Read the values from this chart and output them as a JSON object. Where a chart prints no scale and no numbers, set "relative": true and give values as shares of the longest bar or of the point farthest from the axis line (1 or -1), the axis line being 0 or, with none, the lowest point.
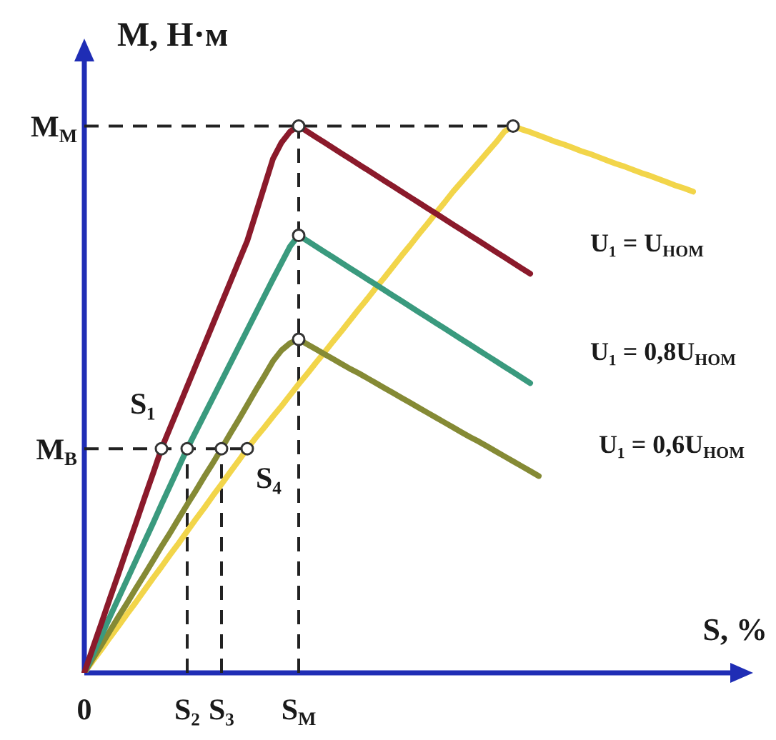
{
  "chart_data": {
    "type": "line",
    "relative": true,
    "xlabel": "S, %",
    "ylabel": "M, Н·м",
    "tick_labels": "x",
    "marker": "none",
    "line_style": "solid",
    "categories": [
      "0",
      null,
      null,
      null,
      null,
      null,
      null,
      null,
      null,
      null,
      null,
      null,
      "S₂",
      null,
      null,
      null,
      "S₃",
      null,
      null,
      null,
      null,
      null,
      null,
      null,
      null,
      "S$_{М}$",
      null,
      null,
      null,
      null,
      null,
      null,
      null,
      null,
      null,
      null,
      null,
      null,
      null,
      null,
      null,
      null,
      null,
      null,
      null,
      null,
      null,
      null,
      null,
      null,
      null,
      null,
      null,
      null,
      null,
      null,
      null,
      null,
      null,
      null,
      null,
      null,
      null,
      null,
      null,
      null,
      null,
      null,
      null,
      null,
      null,
      null
    ],
    "series": [
      {
        "name": "U₁ = U$_{НОМ}$",
        "color": "#8b1a2b",
        "values": [
          0,
          0.046,
          0.091,
          0.137,
          0.182,
          0.228,
          0.273,
          0.319,
          0.364,
          0.41,
          0.448,
          0.486,
          0.524,
          0.562,
          0.6,
          0.638,
          0.676,
          0.714,
          0.752,
          0.79,
          0.84,
          0.89,
          0.94,
          0.97,
          0.99,
          1,
          0.99,
          0.98,
          0.97,
          0.96,
          0.95,
          0.94,
          0.93,
          0.92,
          0.91,
          0.9,
          0.89,
          0.88,
          0.87,
          0.86,
          0.85,
          0.84,
          0.83,
          0.82,
          0.81,
          0.8,
          0.79,
          0.78,
          0.77,
          0.76,
          0.75,
          0.74,
          0.73,
          null,
          null,
          null,
          null,
          null,
          null,
          null,
          null,
          null,
          null,
          null,
          null,
          null,
          null,
          null,
          null,
          null,
          null,
          null
        ]
      },
      {
        "name": "U₁ = 0,8U$_{НОМ}$",
        "color": "#3a9a7e",
        "values": [
          0,
          0.034,
          0.068,
          0.103,
          0.137,
          0.171,
          0.205,
          0.239,
          0.273,
          0.308,
          0.342,
          0.376,
          0.41,
          0.441,
          0.472,
          0.503,
          0.534,
          0.565,
          0.596,
          0.627,
          0.658,
          0.689,
          0.72,
          0.75,
          0.78,
          0.8,
          0.79,
          0.78,
          0.77,
          0.76,
          0.75,
          0.74,
          0.73,
          0.72,
          0.71,
          0.7,
          0.69,
          0.68,
          0.67,
          0.66,
          0.65,
          0.64,
          0.63,
          0.62,
          0.61,
          0.6,
          0.59,
          0.58,
          0.57,
          0.56,
          0.55,
          0.54,
          0.53,
          null,
          null,
          null,
          null,
          null,
          null,
          null,
          null,
          null,
          null,
          null,
          null,
          null,
          null,
          null,
          null,
          null,
          null,
          null
        ]
      },
      {
        "name": "U₁ = 0,6U$_{НОМ}$",
        "color": "#858a35",
        "values": [
          0,
          0.026,
          0.051,
          0.077,
          0.103,
          0.128,
          0.154,
          0.179,
          0.205,
          0.231,
          0.256,
          0.282,
          0.308,
          0.333,
          0.359,
          0.384,
          0.41,
          0.437,
          0.463,
          0.49,
          0.517,
          0.543,
          0.57,
          0.59,
          0.603,
          0.61,
          0.601,
          0.592,
          0.583,
          0.574,
          0.565,
          0.556,
          0.548,
          0.539,
          0.53,
          0.521,
          0.512,
          0.503,
          0.494,
          0.485,
          0.476,
          0.467,
          0.458,
          0.449,
          0.44,
          0.431,
          0.423,
          0.414,
          0.405,
          0.396,
          0.387,
          0.378,
          0.369,
          0.36,
          null,
          null,
          null,
          null,
          null,
          null,
          null,
          null,
          null,
          null,
          null,
          null,
          null,
          null,
          null,
          null,
          null,
          null
        ]
      },
      {
        "color": "#f2d54a",
        "values": [
          0,
          0.022,
          0.043,
          0.065,
          0.086,
          0.108,
          0.129,
          0.151,
          0.173,
          0.194,
          0.216,
          0.237,
          0.259,
          0.281,
          0.302,
          0.324,
          0.345,
          0.367,
          0.388,
          0.41,
          0.43,
          0.449,
          0.469,
          0.488,
          0.508,
          0.528,
          0.547,
          0.567,
          0.586,
          0.606,
          0.625,
          0.645,
          0.665,
          0.684,
          0.704,
          0.723,
          0.743,
          0.763,
          0.782,
          0.802,
          0.821,
          0.841,
          0.86,
          0.88,
          0.898,
          0.916,
          0.934,
          0.952,
          0.97,
          0.99,
          1,
          0.994,
          0.989,
          0.983,
          0.977,
          0.971,
          0.966,
          0.96,
          0.954,
          0.949,
          0.943,
          0.937,
          0.931,
          0.926,
          0.92,
          0.914,
          0.909,
          0.903,
          0.897,
          0.891,
          0.886,
          0.88
        ]
      },
      {
        "color": "#222222",
        "line_style": "dashed",
        "values": [
          1,
          1,
          1,
          1,
          1,
          1,
          1,
          1,
          1,
          1,
          1,
          1,
          1,
          1,
          1,
          1,
          1,
          1,
          1,
          1,
          1,
          1,
          1,
          1,
          1,
          1,
          1,
          1,
          1,
          1,
          1,
          1,
          1,
          1,
          1,
          1,
          1,
          1,
          1,
          1,
          1,
          1,
          1,
          1,
          1,
          1,
          1,
          1,
          1,
          1,
          1,
          null,
          null,
          null,
          null,
          null,
          null,
          null,
          null,
          null,
          null,
          null,
          null,
          null,
          null,
          null,
          null,
          null,
          null,
          null,
          null,
          null
        ]
      },
      {
        "color": "#222222",
        "line_style": "dashed",
        "values": [
          0.41,
          0.41,
          0.41,
          0.41,
          0.41,
          0.41,
          0.41,
          0.41,
          0.41,
          0.41,
          0.41,
          0.41,
          0.41,
          0.41,
          0.41,
          0.41,
          0.41,
          0.41,
          0.41,
          0.41,
          null,
          null,
          null,
          null,
          null,
          null,
          null,
          null,
          null,
          null,
          null,
          null,
          null,
          null,
          null,
          null,
          null,
          null,
          null,
          null,
          null,
          null,
          null,
          null,
          null,
          null,
          null,
          null,
          null,
          null,
          null,
          null,
          null,
          null,
          null,
          null,
          null,
          null,
          null,
          null,
          null,
          null,
          null,
          null,
          null,
          null,
          null,
          null,
          null,
          null,
          null,
          null
        ]
      },
      {
        "color": "#222222",
        "line_style": "dashed",
        "x": [
          "S₂",
          "S₂"
        ],
        "values": [
          0,
          0.41
        ]
      },
      {
        "color": "#222222",
        "line_style": "dashed",
        "x": [
          "S₃",
          "S₃"
        ],
        "values": [
          0,
          0.41
        ]
      },
      {
        "color": "#222222",
        "line_style": "dashed",
        "x": [
          "S$_{М}$",
          "S$_{М}$"
        ],
        "values": [
          0,
          1
        ]
      },
      {
        "type": "scatter",
        "color": "#333333",
        "marker": "circle",
        "values": [
          null,
          null,
          null,
          null,
          null,
          null,
          null,
          null,
          null,
          0.41,
          null,
          null,
          0.41,
          null,
          null,
          null,
          0.41,
          null,
          null,
          0.41,
          null,
          null,
          null,
          null,
          null,
          null,
          null,
          null,
          null,
          null,
          null,
          null,
          null,
          null,
          null,
          null,
          null,
          null,
          null,
          null,
          null,
          null,
          null,
          null,
          null,
          null,
          null,
          null,
          null,
          null,
          1,
          null,
          null,
          null,
          null,
          null,
          null,
          null,
          null,
          null,
          null,
          null,
          null,
          null,
          null,
          null,
          null,
          null,
          null,
          null,
          null,
          null
        ]
      },
      {
        "type": "scatter",
        "color": "#333333",
        "marker": "circle",
        "x": [
          "S$_{М}$",
          "S$_{М}$",
          "S$_{М}$"
        ],
        "values": [
          1,
          0.8,
          0.61
        ]
      }
    ],
    "annotations": [
      {
        "text": "M$_{М}$",
        "x": "0",
        "y": 1
      },
      {
        "text": "M$_{В}$",
        "x": "0",
        "y": 0.41
      },
      "S₁",
      "S₄"
    ]
  }
}
